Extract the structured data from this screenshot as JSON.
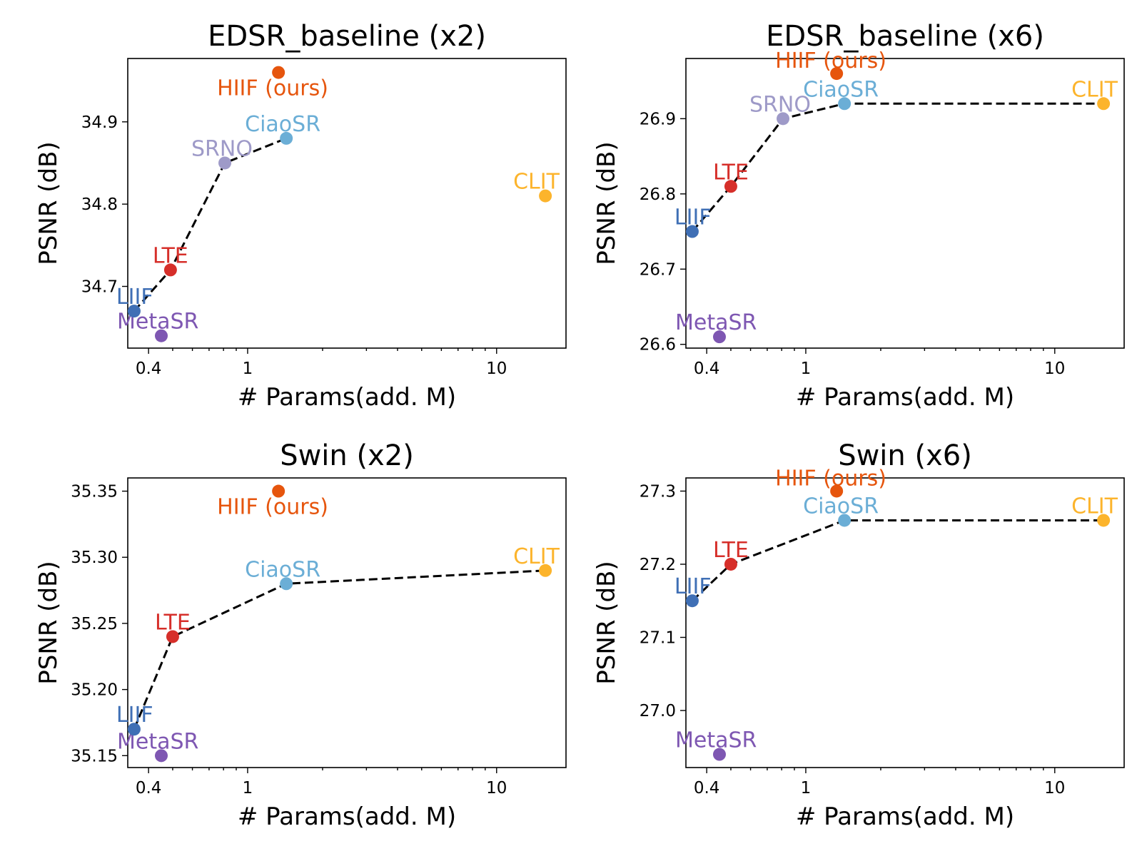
{
  "figure": {
    "xlabel": "# Params(add. M)",
    "ylabel": "PSNR (dB)",
    "xscale": "log",
    "x_ticks": [
      {
        "value": 0.4,
        "label": "0.4"
      },
      {
        "value": 1,
        "label": "1"
      },
      {
        "value": 10,
        "label": "10"
      }
    ]
  },
  "colors": {
    "MetaSR": "#7e57b2",
    "LIIF": "#3f6fb5",
    "LTE": "#d62f2a",
    "SRNO": "#9e9ac8",
    "CiaoSR": "#6baed6",
    "CLIT": "#fcb42c",
    "HIIF (ours)": "#e6550d"
  },
  "chart_data": [
    {
      "type": "scatter",
      "title": "EDSR_baseline (x2)",
      "xlabel": "# Params(add. M)",
      "ylabel": "PSNR (dB)",
      "xlim": [
        0.33,
        19
      ],
      "ylim": [
        34.625,
        34.977
      ],
      "y_ticks": [
        {
          "value": 34.7,
          "label": "34.7"
        },
        {
          "value": 34.8,
          "label": "34.8"
        },
        {
          "value": 34.9,
          "label": "34.9"
        }
      ],
      "points": [
        {
          "name": "MetaSR",
          "label": "MetaSR",
          "x": 0.45,
          "y": 34.64
        },
        {
          "name": "LIIF",
          "label": "LIIF",
          "x": 0.35,
          "y": 34.67
        },
        {
          "name": "LTE",
          "label": "LTE",
          "x": 0.49,
          "y": 34.72
        },
        {
          "name": "SRNO",
          "label": "SRNO",
          "x": 0.81,
          "y": 34.85
        },
        {
          "name": "CiaoSR",
          "label": "CiaoSR",
          "x": 1.43,
          "y": 34.88
        },
        {
          "name": "CLIT",
          "label": "CLIT",
          "x": 15.7,
          "y": 34.81
        },
        {
          "name": "HIIF (ours)",
          "label": "HIIF (ours)",
          "x": 1.33,
          "y": 34.96
        }
      ],
      "pareto_front": [
        "LIIF",
        "LTE",
        "SRNO",
        "CiaoSR"
      ]
    },
    {
      "type": "scatter",
      "title": "EDSR_baseline (x6)",
      "xlabel": "# Params(add. M)",
      "ylabel": "PSNR (dB)",
      "xlim": [
        0.33,
        19
      ],
      "ylim": [
        26.595,
        26.98
      ],
      "y_ticks": [
        {
          "value": 26.6,
          "label": "26.6"
        },
        {
          "value": 26.7,
          "label": "26.7"
        },
        {
          "value": 26.8,
          "label": "26.8"
        },
        {
          "value": 26.9,
          "label": "26.9"
        }
      ],
      "points": [
        {
          "name": "MetaSR",
          "label": "MetaSR",
          "x": 0.45,
          "y": 26.61
        },
        {
          "name": "LIIF",
          "label": "LIIF",
          "x": 0.35,
          "y": 26.75
        },
        {
          "name": "LTE",
          "label": "LTE",
          "x": 0.5,
          "y": 26.81
        },
        {
          "name": "SRNO",
          "label": "SRNO",
          "x": 0.81,
          "y": 26.9
        },
        {
          "name": "CiaoSR",
          "label": "CiaoSR",
          "x": 1.43,
          "y": 26.92
        },
        {
          "name": "CLIT",
          "label": "CLIT",
          "x": 15.7,
          "y": 26.92
        },
        {
          "name": "HIIF (ours)",
          "label": "HIIF (ours)",
          "x": 1.33,
          "y": 26.96
        }
      ],
      "pareto_front": [
        "LIIF",
        "LTE",
        "SRNO",
        "CiaoSR",
        "CLIT"
      ]
    },
    {
      "type": "scatter",
      "title": "Swin (x2)",
      "xlabel": "# Params(add. M)",
      "ylabel": "PSNR (dB)",
      "xlim": [
        0.33,
        19
      ],
      "ylim": [
        35.141,
        35.36
      ],
      "y_ticks": [
        {
          "value": 35.15,
          "label": "35.15"
        },
        {
          "value": 35.2,
          "label": "35.20"
        },
        {
          "value": 35.25,
          "label": "35.25"
        },
        {
          "value": 35.3,
          "label": "35.30"
        },
        {
          "value": 35.35,
          "label": "35.35"
        }
      ],
      "points": [
        {
          "name": "MetaSR",
          "label": "MetaSR",
          "x": 0.45,
          "y": 35.15
        },
        {
          "name": "LIIF",
          "label": "LIIF",
          "x": 0.35,
          "y": 35.17
        },
        {
          "name": "LTE",
          "label": "LTE",
          "x": 0.5,
          "y": 35.24
        },
        {
          "name": "CiaoSR",
          "label": "CiaoSR",
          "x": 1.43,
          "y": 35.28
        },
        {
          "name": "CLIT",
          "label": "CLIT",
          "x": 15.7,
          "y": 35.29
        },
        {
          "name": "HIIF (ours)",
          "label": "HIIF (ours)",
          "x": 1.33,
          "y": 35.35
        }
      ],
      "pareto_front": [
        "LIIF",
        "LTE",
        "CiaoSR",
        "CLIT"
      ]
    },
    {
      "type": "scatter",
      "title": "Swin (x6)",
      "xlabel": "# Params(add. M)",
      "ylabel": "PSNR (dB)",
      "xlim": [
        0.33,
        19
      ],
      "ylim": [
        26.922,
        27.318
      ],
      "y_ticks": [
        {
          "value": 27.0,
          "label": "27.0"
        },
        {
          "value": 27.1,
          "label": "27.1"
        },
        {
          "value": 27.2,
          "label": "27.2"
        },
        {
          "value": 27.3,
          "label": "27.3"
        }
      ],
      "points": [
        {
          "name": "MetaSR",
          "label": "MetaSR",
          "x": 0.45,
          "y": 26.94
        },
        {
          "name": "LIIF",
          "label": "LIIF",
          "x": 0.35,
          "y": 27.15
        },
        {
          "name": "LTE",
          "label": "LTE",
          "x": 0.5,
          "y": 27.2
        },
        {
          "name": "CiaoSR",
          "label": "CiaoSR",
          "x": 1.43,
          "y": 27.26
        },
        {
          "name": "CLIT",
          "label": "CLIT",
          "x": 15.7,
          "y": 27.26
        },
        {
          "name": "HIIF (ours)",
          "label": "HIIF (ours)",
          "x": 1.33,
          "y": 27.3
        }
      ],
      "pareto_front": [
        "LIIF",
        "LTE",
        "CiaoSR",
        "CLIT"
      ]
    }
  ]
}
